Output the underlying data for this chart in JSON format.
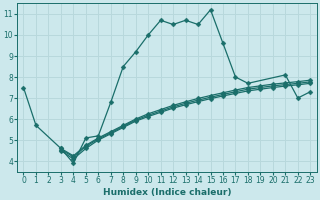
{
  "xlabel": "Humidex (Indice chaleur)",
  "bg_color": "#cce8ec",
  "grid_color": "#b8d8dc",
  "line_color": "#1a6e6a",
  "xlim": [
    -0.5,
    23.5
  ],
  "ylim": [
    3.5,
    11.5
  ],
  "xticks": [
    0,
    1,
    2,
    3,
    4,
    5,
    6,
    7,
    8,
    9,
    10,
    11,
    12,
    13,
    14,
    15,
    16,
    17,
    18,
    19,
    20,
    21,
    22,
    23
  ],
  "yticks": [
    4,
    5,
    6,
    7,
    8,
    9,
    10,
    11
  ],
  "main_series": {
    "x": [
      0,
      1,
      3,
      4,
      5,
      6,
      7,
      8,
      9,
      10,
      11,
      12,
      13,
      14,
      15,
      16,
      17,
      18,
      21,
      22,
      23
    ],
    "y": [
      7.5,
      5.7,
      4.6,
      3.9,
      5.1,
      5.2,
      6.8,
      8.5,
      9.2,
      10.0,
      10.7,
      10.5,
      10.7,
      10.5,
      11.2,
      9.6,
      8.0,
      7.7,
      8.1,
      7.0,
      7.3
    ]
  },
  "linear_series": [
    {
      "x": [
        3,
        4,
        5,
        6,
        7,
        8,
        9,
        10,
        11,
        12,
        13,
        14,
        15,
        16,
        17,
        18,
        19,
        20,
        21,
        22,
        23
      ],
      "y": [
        4.6,
        4.25,
        4.75,
        5.1,
        5.4,
        5.7,
        6.0,
        6.25,
        6.45,
        6.65,
        6.82,
        6.98,
        7.12,
        7.25,
        7.38,
        7.5,
        7.58,
        7.66,
        7.72,
        7.78,
        7.85
      ]
    },
    {
      "x": [
        3,
        4,
        5,
        6,
        7,
        8,
        9,
        10,
        11,
        12,
        13,
        14,
        15,
        16,
        17,
        18,
        19,
        20,
        21,
        22,
        23
      ],
      "y": [
        4.5,
        4.1,
        4.6,
        5.0,
        5.3,
        5.6,
        5.9,
        6.12,
        6.32,
        6.52,
        6.68,
        6.83,
        6.97,
        7.1,
        7.22,
        7.34,
        7.42,
        7.5,
        7.57,
        7.63,
        7.7
      ]
    },
    {
      "x": [
        3,
        4,
        5,
        6,
        7,
        8,
        9,
        10,
        11,
        12,
        13,
        14,
        15,
        16,
        17,
        18,
        19,
        20,
        21,
        22,
        23
      ],
      "y": [
        4.55,
        4.2,
        4.7,
        5.05,
        5.35,
        5.65,
        5.95,
        6.18,
        6.38,
        6.58,
        6.75,
        6.9,
        7.04,
        7.17,
        7.3,
        7.42,
        7.5,
        7.58,
        7.64,
        7.7,
        7.77
      ]
    }
  ],
  "marker": "D",
  "markersize": 2.5,
  "linewidth": 0.9,
  "tick_fontsize": 5.5,
  "xlabel_fontsize": 6.5
}
